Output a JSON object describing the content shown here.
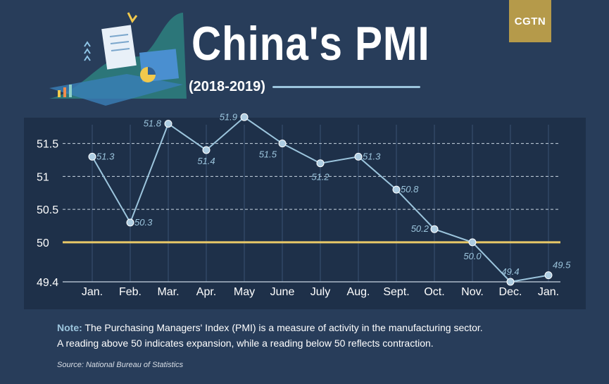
{
  "header": {
    "title": "China's PMI",
    "subtitle": "(2018-2019)",
    "logo_text": "CGTN"
  },
  "colors": {
    "background": "#283d5a",
    "panel": "#1e3049",
    "line": "#9cc5dd",
    "point": "#aecde2",
    "threshold": "#e8c867",
    "logo_bg": "#b59a4a",
    "note_label": "#9cc5dd"
  },
  "chart_data": {
    "type": "line",
    "title": "China's PMI",
    "subtitle": "(2018-2019)",
    "categories": [
      "Jan.",
      "Feb.",
      "Mar.",
      "Apr.",
      "May",
      "June",
      "July",
      "Aug.",
      "Sept.",
      "Oct.",
      "Nov.",
      "Dec.",
      "Jan."
    ],
    "series": [
      {
        "values": [
          51.3,
          50.3,
          51.8,
          51.4,
          51.9,
          51.5,
          51.2,
          51.3,
          50.8,
          50.2,
          50.0,
          49.4,
          49.5
        ],
        "labels": [
          "51.3",
          "50.3",
          "51.8",
          "51.4",
          "51.9",
          "51.5",
          "51.2",
          "51.3",
          "50.8",
          "50.2",
          "50.0",
          "49.4",
          "49.5"
        ]
      }
    ],
    "yticks": [
      49.4,
      50,
      50.5,
      51,
      51.5
    ],
    "ytick_labels": [
      "49.4",
      "50",
      "50.5",
      "51",
      "51.5"
    ],
    "ylim": [
      49.4,
      52
    ],
    "grid": "horizontal dashed",
    "reference_line": {
      "value": 50
    }
  },
  "note": {
    "label": "Note:",
    "line1": "The Purchasing Managers' Index (PMI) is a measure of activity in the manufacturing sector.",
    "line2": "A reading above 50 indicates expansion, while a reading below 50 reflects contraction."
  },
  "source": "Source: National Bureau of Statistics"
}
